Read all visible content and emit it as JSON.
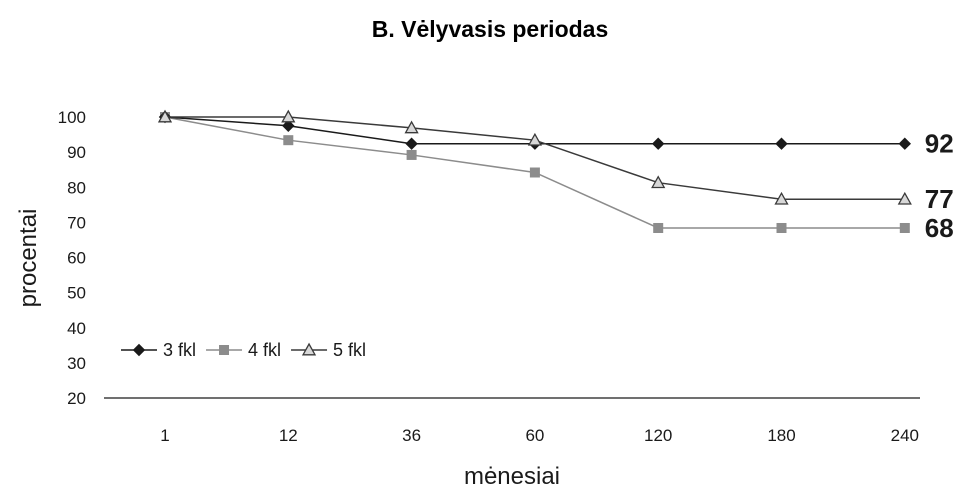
{
  "chart_data": {
    "type": "line",
    "title": "B. Vėlyvasis periodas",
    "xlabel": "mėnesiai",
    "ylabel": "procentai",
    "categories": [
      "1",
      "12",
      "36",
      "60",
      "120",
      "180",
      "240"
    ],
    "ylim": [
      20,
      100
    ],
    "yticks": [
      20,
      30,
      40,
      50,
      60,
      70,
      80,
      90,
      100
    ],
    "grid": false,
    "legend_position": "bottom-left",
    "series": [
      {
        "name": "3 fkl",
        "marker": "diamond",
        "color": "#1a1a1a",
        "values": [
          100,
          97.5,
          92.4,
          92.4,
          92.4,
          92.4,
          92.4
        ],
        "end_label": "92"
      },
      {
        "name": "4 fkl",
        "marker": "square",
        "color": "#8c8c8c",
        "values": [
          100,
          93.4,
          89.2,
          84.2,
          68.4,
          68.4,
          68.4
        ],
        "end_label": "68"
      },
      {
        "name": "5 fkl",
        "marker": "triangle",
        "color": "#3a3a3a",
        "values": [
          100,
          100,
          96.9,
          93.4,
          81.3,
          76.6,
          76.6
        ],
        "end_label": "77"
      }
    ]
  }
}
